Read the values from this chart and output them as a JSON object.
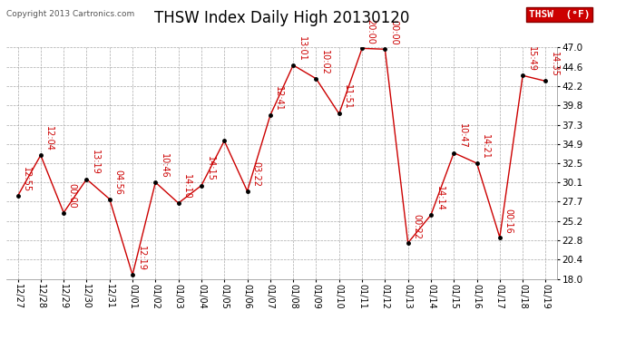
{
  "title": "THSW Index Daily High 20130120",
  "copyright": "Copyright 2013 Cartronics.com",
  "legend_label": "THSW  (°F)",
  "x_labels": [
    "12/27",
    "12/28",
    "12/29",
    "12/30",
    "12/31",
    "01/01",
    "01/02",
    "01/03",
    "01/04",
    "01/05",
    "01/06",
    "01/07",
    "01/08",
    "01/09",
    "01/10",
    "01/11",
    "01/12",
    "01/13",
    "01/14",
    "01/15",
    "01/16",
    "01/17",
    "01/18",
    "01/19"
  ],
  "y_values": [
    28.4,
    33.5,
    26.3,
    30.5,
    28.0,
    18.5,
    30.1,
    27.5,
    29.7,
    35.3,
    29.0,
    38.5,
    44.8,
    43.1,
    38.7,
    46.9,
    46.8,
    22.5,
    26.0,
    33.8,
    32.5,
    23.2,
    43.5,
    42.8
  ],
  "annotations": [
    "12:55",
    "12:04",
    "00:00",
    "13:19",
    "04:56",
    "12:19",
    "10:46",
    "14:10",
    "14:15",
    "",
    "03:22",
    "12:41",
    "13:01",
    "10:02",
    "11:51",
    "20:00",
    "00:00",
    "00:22",
    "14:14",
    "10:47",
    "14:21",
    "00:16",
    "15:49",
    "14:35"
  ],
  "ylim": [
    18.0,
    47.0
  ],
  "yticks": [
    18.0,
    20.4,
    22.8,
    25.2,
    27.7,
    30.1,
    32.5,
    34.9,
    37.3,
    39.8,
    42.2,
    44.6,
    47.0
  ],
  "line_color": "#cc0000",
  "marker_color": "#000000",
  "grid_color": "#aaaaaa",
  "bg_color": "#ffffff",
  "title_fontsize": 12,
  "annotation_fontsize": 7,
  "legend_bg": "#cc0000",
  "legend_text_color": "#ffffff",
  "copyright_color": "#555555"
}
